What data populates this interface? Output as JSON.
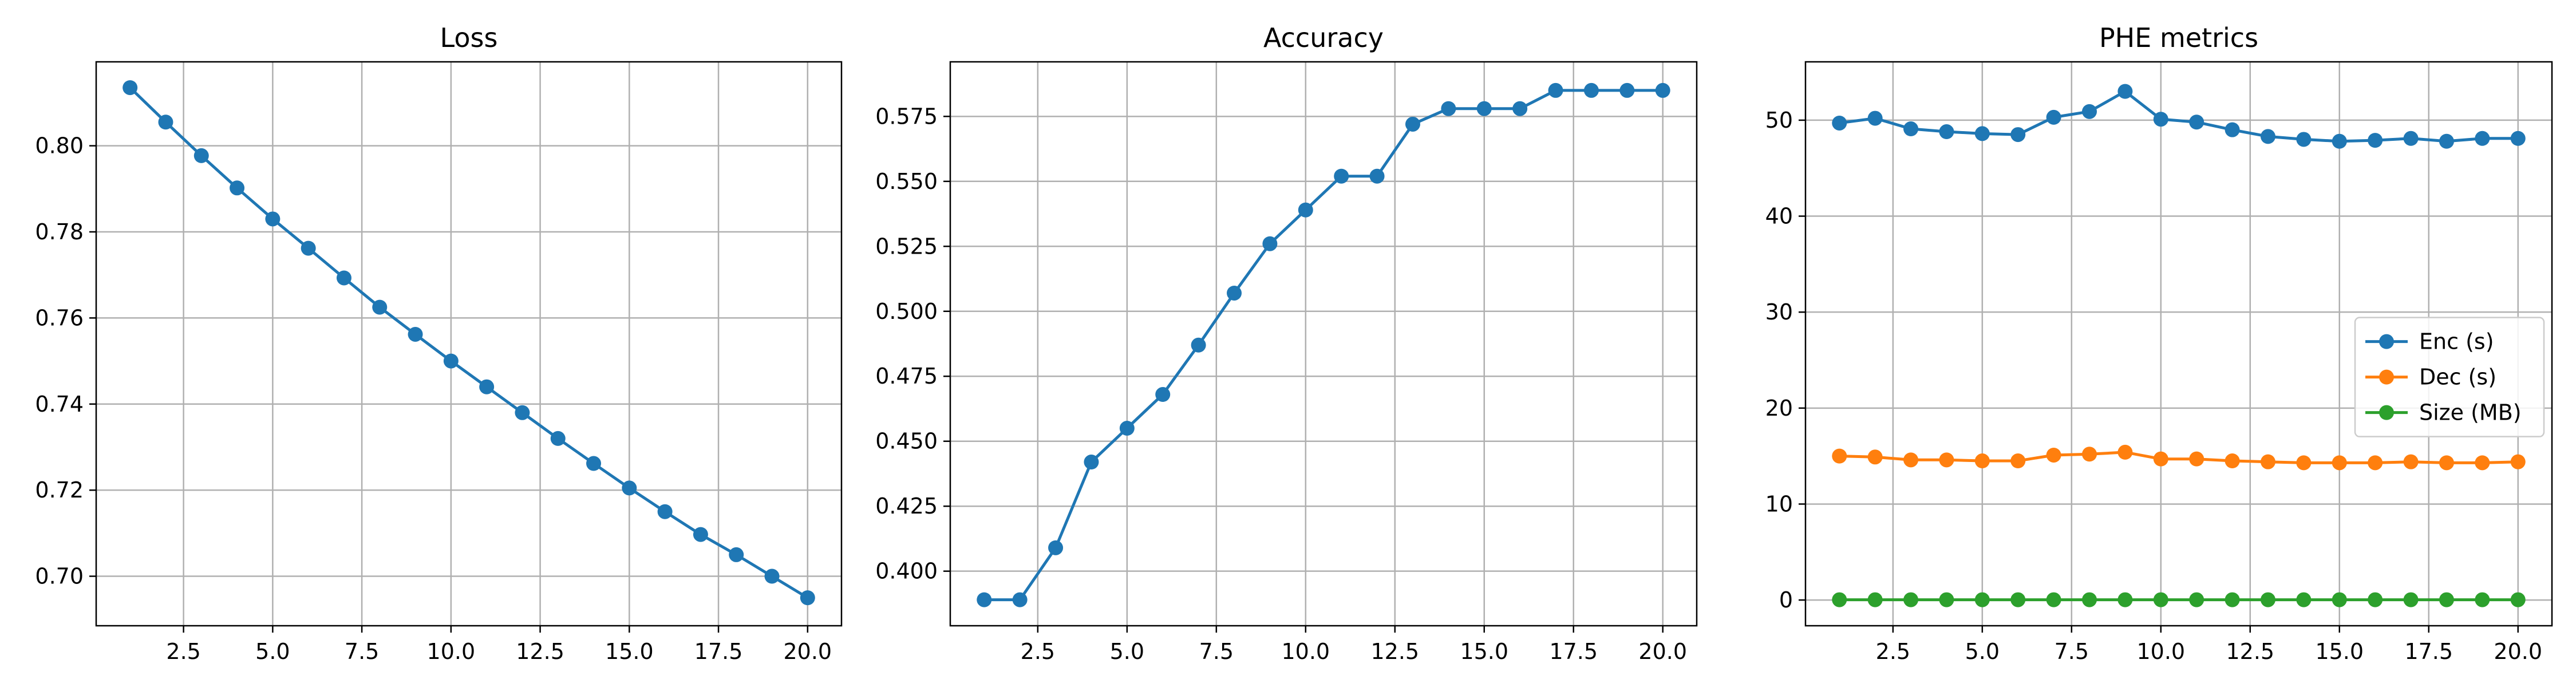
{
  "figure": {
    "background": "#ffffff"
  },
  "chart_data": [
    {
      "type": "line",
      "title": "Loss",
      "xlabel": "",
      "ylabel": "",
      "xlim": [
        0.05,
        20.95
      ],
      "ylim": [
        0.6885,
        0.8195
      ],
      "xticks": [
        2.5,
        5.0,
        7.5,
        10.0,
        12.5,
        15.0,
        17.5,
        20.0
      ],
      "xtick_labels": [
        "2.5",
        "5.0",
        "7.5",
        "10.0",
        "12.5",
        "15.0",
        "17.5",
        "20.0"
      ],
      "yticks": [
        0.7,
        0.72,
        0.74,
        0.76,
        0.78,
        0.8
      ],
      "ytick_labels": [
        "0.70",
        "0.72",
        "0.74",
        "0.76",
        "0.78",
        "0.80"
      ],
      "grid": true,
      "legend": "none",
      "series": [
        {
          "color": "#1f77b4",
          "marker": "circle",
          "x": [
            1,
            2,
            3,
            4,
            5,
            6,
            7,
            8,
            9,
            10,
            11,
            12,
            13,
            14,
            15,
            16,
            17,
            18,
            19,
            20
          ],
          "y": [
            0.8135,
            0.8055,
            0.7977,
            0.7902,
            0.783,
            0.7762,
            0.7693,
            0.7625,
            0.7562,
            0.75,
            0.744,
            0.738,
            0.732,
            0.7262,
            0.7205,
            0.715,
            0.7097,
            0.705,
            0.7,
            0.695
          ]
        }
      ]
    },
    {
      "type": "line",
      "title": "Accuracy",
      "xlabel": "",
      "ylabel": "",
      "xlim": [
        0.05,
        20.95
      ],
      "ylim": [
        0.379,
        0.596
      ],
      "xticks": [
        2.5,
        5.0,
        7.5,
        10.0,
        12.5,
        15.0,
        17.5,
        20.0
      ],
      "xtick_labels": [
        "2.5",
        "5.0",
        "7.5",
        "10.0",
        "12.5",
        "15.0",
        "17.5",
        "20.0"
      ],
      "yticks": [
        0.4,
        0.425,
        0.45,
        0.475,
        0.5,
        0.525,
        0.55,
        0.575
      ],
      "ytick_labels": [
        "0.400",
        "0.425",
        "0.450",
        "0.475",
        "0.500",
        "0.525",
        "0.550",
        "0.575"
      ],
      "grid": true,
      "legend": "none",
      "series": [
        {
          "color": "#1f77b4",
          "marker": "circle",
          "x": [
            1,
            2,
            3,
            4,
            5,
            6,
            7,
            8,
            9,
            10,
            11,
            12,
            13,
            14,
            15,
            16,
            17,
            18,
            19,
            20
          ],
          "y": [
            0.389,
            0.389,
            0.409,
            0.442,
            0.455,
            0.468,
            0.487,
            0.507,
            0.526,
            0.539,
            0.552,
            0.552,
            0.572,
            0.578,
            0.578,
            0.578,
            0.585,
            0.585,
            0.585,
            0.585
          ]
        }
      ]
    },
    {
      "type": "line",
      "title": "PHE metrics",
      "xlabel": "",
      "ylabel": "",
      "xlim": [
        0.05,
        20.95
      ],
      "ylim": [
        -2.68,
        56.08
      ],
      "xticks": [
        2.5,
        5.0,
        7.5,
        10.0,
        12.5,
        15.0,
        17.5,
        20.0
      ],
      "xtick_labels": [
        "2.5",
        "5.0",
        "7.5",
        "10.0",
        "12.5",
        "15.0",
        "17.5",
        "20.0"
      ],
      "yticks": [
        0,
        10,
        20,
        30,
        40,
        50
      ],
      "ytick_labels": [
        "0",
        "10",
        "20",
        "30",
        "40",
        "50"
      ],
      "grid": true,
      "legend": "center-right",
      "series": [
        {
          "name": "Enc (s)",
          "color": "#1f77b4",
          "marker": "circle",
          "x": [
            1,
            2,
            3,
            4,
            5,
            6,
            7,
            8,
            9,
            10,
            11,
            12,
            13,
            14,
            15,
            16,
            17,
            18,
            19,
            20
          ],
          "y": [
            49.7,
            50.2,
            49.1,
            48.8,
            48.6,
            48.5,
            50.3,
            50.9,
            53.0,
            50.1,
            49.8,
            49.0,
            48.3,
            48.0,
            47.8,
            47.9,
            48.1,
            47.8,
            48.1,
            48.1
          ]
        },
        {
          "name": "Dec (s)",
          "color": "#ff7f0e",
          "marker": "circle",
          "x": [
            1,
            2,
            3,
            4,
            5,
            6,
            7,
            8,
            9,
            10,
            11,
            12,
            13,
            14,
            15,
            16,
            17,
            18,
            19,
            20
          ],
          "y": [
            15.0,
            14.9,
            14.6,
            14.6,
            14.5,
            14.5,
            15.1,
            15.2,
            15.4,
            14.7,
            14.7,
            14.5,
            14.4,
            14.3,
            14.3,
            14.3,
            14.4,
            14.3,
            14.3,
            14.4
          ]
        },
        {
          "name": "Size (MB)",
          "color": "#2ca02c",
          "marker": "circle",
          "x": [
            1,
            2,
            3,
            4,
            5,
            6,
            7,
            8,
            9,
            10,
            11,
            12,
            13,
            14,
            15,
            16,
            17,
            18,
            19,
            20
          ],
          "y": [
            0.03,
            0.03,
            0.03,
            0.03,
            0.03,
            0.03,
            0.03,
            0.03,
            0.03,
            0.03,
            0.03,
            0.03,
            0.03,
            0.03,
            0.03,
            0.03,
            0.03,
            0.03,
            0.03,
            0.03
          ]
        }
      ]
    }
  ]
}
